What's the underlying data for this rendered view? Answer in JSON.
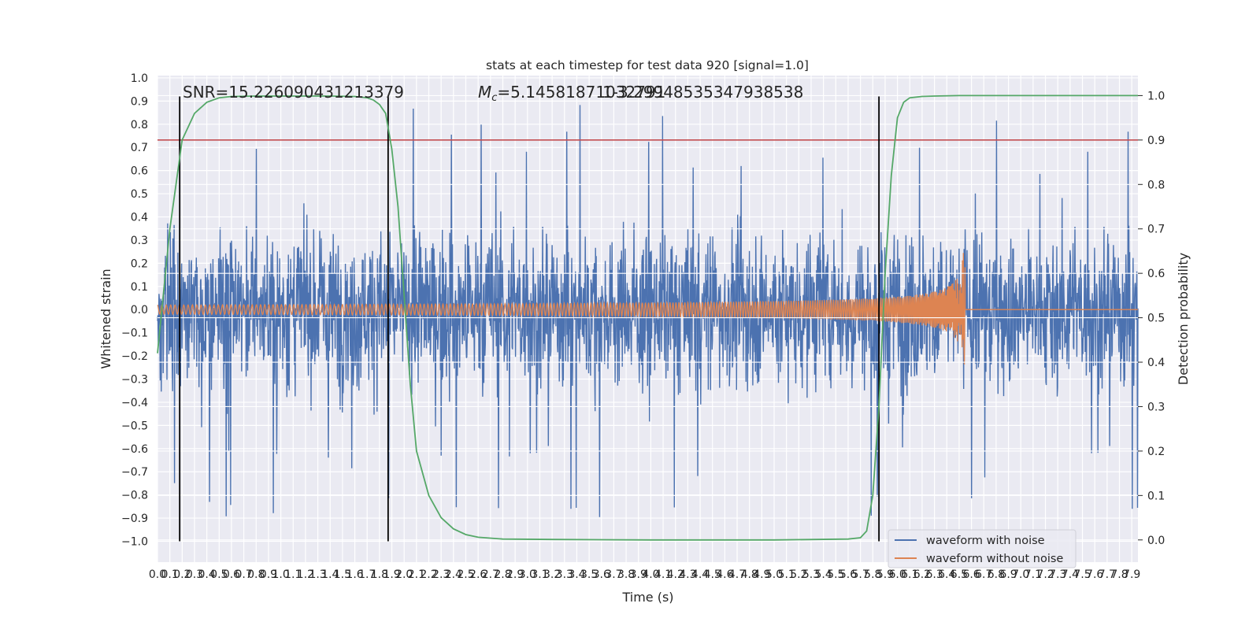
{
  "chart_data": {
    "type": "line",
    "title": "stats at each timestep for test data 920 [signal=1.0]",
    "xlabel": "Time (s)",
    "ylabel_left": "Whitened strain",
    "ylabel_right": "Detection probability",
    "xlim": [
      0.0,
      7.95
    ],
    "ylim_left": [
      -1.09,
      1.01
    ],
    "ylim_right": [
      -0.05,
      1.045
    ],
    "x_ticks": [
      0.0,
      0.1,
      0.2,
      0.3,
      0.4,
      0.5,
      0.6,
      0.7,
      0.8,
      0.9,
      1.0,
      1.1,
      1.2,
      1.3,
      1.4,
      1.5,
      1.6,
      1.7,
      1.8,
      1.9,
      2.0,
      2.1,
      2.2,
      2.3,
      2.4,
      2.5,
      2.6,
      2.7,
      2.8,
      2.9,
      3.0,
      3.1,
      3.2,
      3.3,
      3.4,
      3.5,
      3.6,
      3.7,
      3.8,
      3.9,
      4.0,
      4.1,
      4.2,
      4.3,
      4.4,
      4.5,
      4.6,
      4.7,
      4.8,
      4.9,
      5.0,
      5.1,
      5.2,
      5.3,
      5.4,
      5.5,
      5.6,
      5.7,
      5.8,
      5.9,
      6.0,
      6.1,
      6.2,
      6.3,
      6.4,
      6.5,
      6.6,
      6.7,
      6.8,
      6.9,
      7.0,
      7.1,
      7.2,
      7.3,
      7.4,
      7.5,
      7.6,
      7.7,
      7.8,
      7.9
    ],
    "y_ticks_left": [
      1.0,
      0.9,
      0.8,
      0.7,
      0.6,
      0.5,
      0.4,
      0.3,
      0.2,
      0.1,
      0.0,
      -0.1,
      -0.2,
      -0.3,
      -0.4,
      -0.5,
      -0.6,
      -0.7,
      -0.8,
      -0.9,
      -1.0
    ],
    "y_ticks_right": [
      1.0,
      0.9,
      0.8,
      0.7,
      0.6,
      0.5,
      0.4,
      0.3,
      0.2,
      0.1,
      0.0
    ],
    "annotations": {
      "snr": "SNR=15.226090431213379",
      "mc_symbol": "M",
      "mc_subscript": "c",
      "mc_value": "=5.14581871032791",
      "overlap_value": "1-3.29948535347938538"
    },
    "threshold": {
      "value": 0.9,
      "axis": "right",
      "color": "#c44e52"
    },
    "transition_lines": [
      0.18,
      1.87,
      5.85
    ],
    "series": [
      {
        "name": "waveform with noise",
        "color": "#4c72b0",
        "axis": "left",
        "envelope": 0.38,
        "spike_max": 0.92
      },
      {
        "name": "waveform without noise",
        "color": "#dd8452",
        "axis": "left",
        "amp_start": 0.02,
        "amp_peak": 0.27,
        "merger_time": 6.55
      },
      {
        "name": "",
        "color": "#55a868",
        "axis": "right",
        "x": [
          0.0,
          0.1,
          0.2,
          0.3,
          0.4,
          0.5,
          0.6,
          0.8,
          1.0,
          1.4,
          1.6,
          1.7,
          1.75,
          1.8,
          1.85,
          1.9,
          1.95,
          2.0,
          2.05,
          2.1,
          2.2,
          2.3,
          2.4,
          2.5,
          2.6,
          2.8,
          3.2,
          4.0,
          5.0,
          5.6,
          5.7,
          5.75,
          5.8,
          5.85,
          5.9,
          5.95,
          6.0,
          6.05,
          6.1,
          6.2,
          6.3,
          6.5,
          7.0,
          7.5,
          7.95
        ],
        "y": [
          0.42,
          0.7,
          0.9,
          0.96,
          0.985,
          0.995,
          0.998,
          0.999,
          0.999,
          0.999,
          0.998,
          0.995,
          0.99,
          0.98,
          0.96,
          0.88,
          0.75,
          0.55,
          0.35,
          0.2,
          0.1,
          0.05,
          0.025,
          0.012,
          0.006,
          0.002,
          0.001,
          0.0,
          0.0,
          0.002,
          0.005,
          0.02,
          0.1,
          0.3,
          0.6,
          0.82,
          0.95,
          0.985,
          0.995,
          0.998,
          0.999,
          1.0,
          1.0,
          1.0,
          1.0
        ]
      }
    ],
    "legend": {
      "placement": "lower-right",
      "entries": [
        "waveform with noise",
        "waveform without noise"
      ]
    },
    "grid": true,
    "colors": {
      "axes_bg": "#eaeaf2",
      "grid": "#ffffff",
      "vline": "#000000"
    }
  }
}
